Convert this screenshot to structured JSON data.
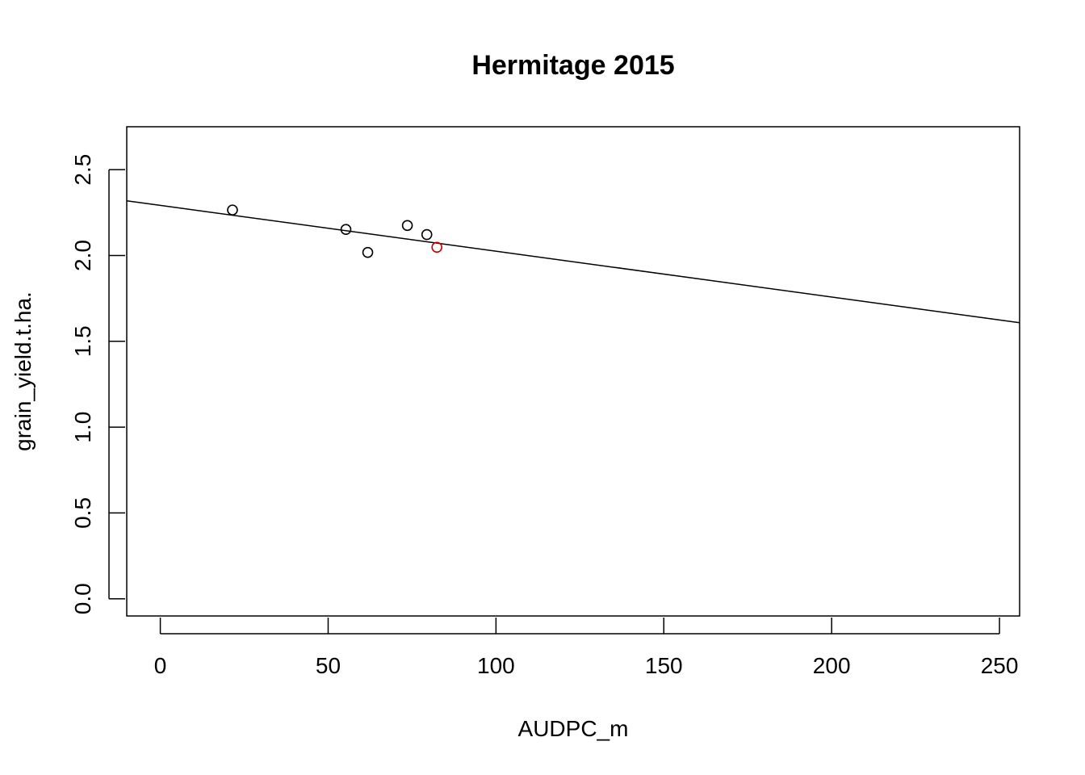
{
  "chart_data": {
    "type": "scatter",
    "title": "Hermitage 2015",
    "xlabel": "AUDPC_m",
    "ylabel": "grain_yield.t.ha.",
    "xlim": [
      -10,
      256
    ],
    "ylim": [
      -0.1,
      2.75
    ],
    "x_ticks": [
      0,
      50,
      100,
      150,
      200,
      250
    ],
    "x_tick_labels": [
      "0",
      "50",
      "100",
      "150",
      "200",
      "250"
    ],
    "y_ticks": [
      0,
      0.5,
      1,
      1.5,
      2,
      2.5
    ],
    "y_tick_labels": [
      "0.0",
      "0.5",
      "1.0",
      "1.5",
      "2.0",
      "2.5"
    ],
    "grid": false,
    "legend": "none",
    "points": [
      {
        "x": 21.5,
        "y": 2.265,
        "color": "#000000"
      },
      {
        "x": 55.3,
        "y": 2.152,
        "color": "#000000"
      },
      {
        "x": 61.8,
        "y": 2.018,
        "color": "#000000"
      },
      {
        "x": 73.6,
        "y": 2.175,
        "color": "#000000"
      },
      {
        "x": 79.4,
        "y": 2.122,
        "color": "#000000"
      },
      {
        "x": 82.4,
        "y": 2.048,
        "color": "#cc0000"
      }
    ],
    "fit_line": {
      "intercept": 2.292,
      "slope": -0.00267
    }
  }
}
